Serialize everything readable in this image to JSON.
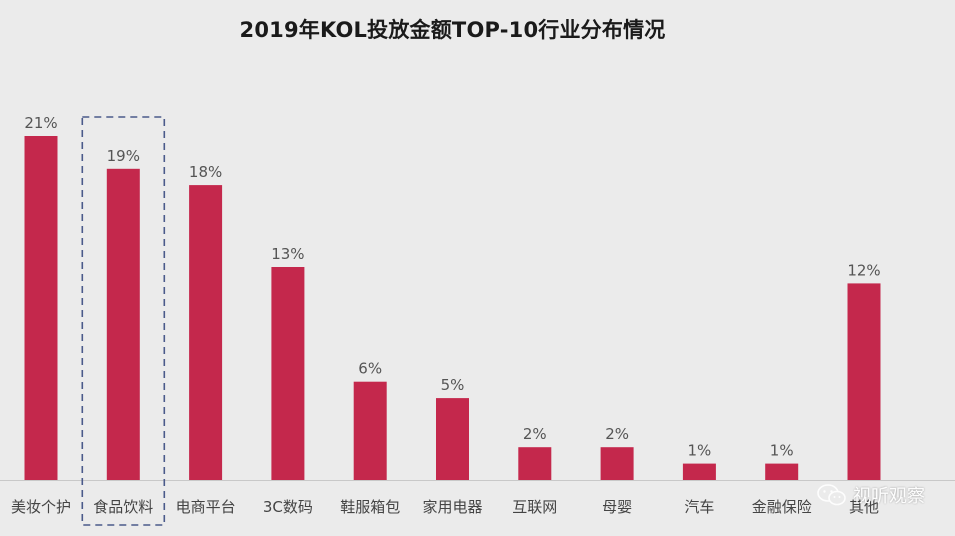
{
  "chart_data": {
    "type": "bar",
    "title": "2019年KOL投放金额TOP-10行业分布情况",
    "categories": [
      "美妆个护",
      "食品饮料",
      "电商平台",
      "3C数码",
      "鞋服箱包",
      "家用电器",
      "互联网",
      "母婴",
      "汽车",
      "金融保险",
      "其他"
    ],
    "values": [
      21,
      19,
      18,
      13,
      6,
      5,
      2,
      2,
      1,
      1,
      12
    ],
    "value_labels": [
      "21%",
      "19%",
      "18%",
      "13%",
      "6%",
      "5%",
      "2%",
      "2%",
      "1%",
      "1%",
      "12%"
    ],
    "unit": "%",
    "ylim": [
      0,
      21
    ],
    "xlabel": "",
    "ylabel": "",
    "grid": false,
    "highlight_category": "食品饮料",
    "bar_color": "#c4284c",
    "label_color": "#555555",
    "highlight_box_color": "#4a5a8a"
  },
  "watermark": {
    "icon": "wechat-icon",
    "text": "视听观察"
  }
}
